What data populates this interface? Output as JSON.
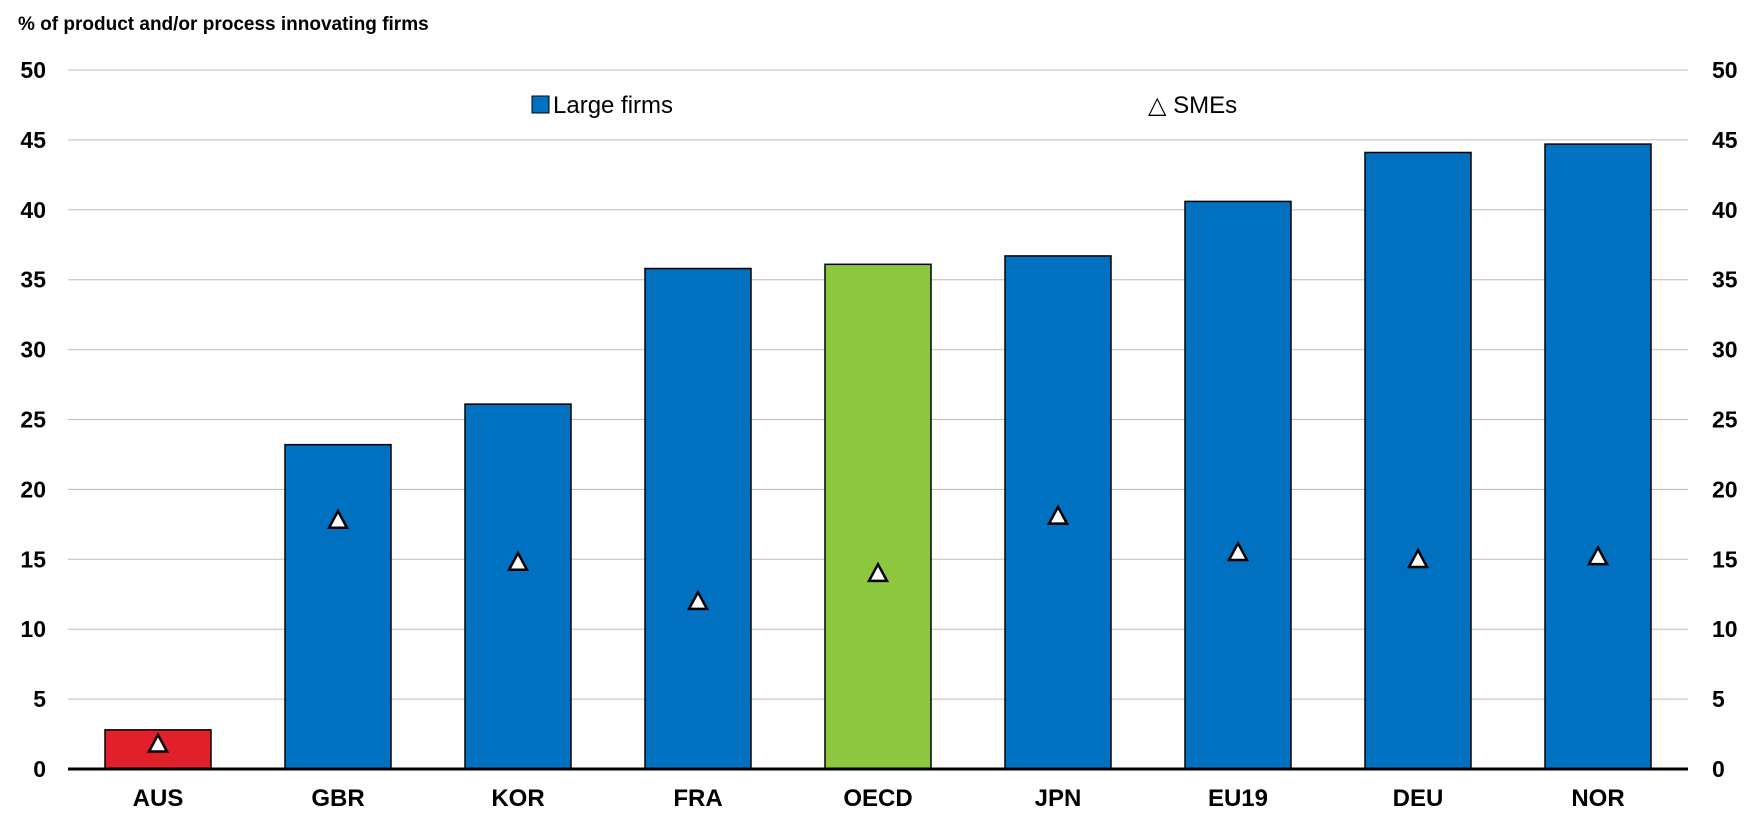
{
  "chart_data": {
    "type": "bar",
    "ylabel": "% of product and/or process innovating firms",
    "categories": [
      "AUS",
      "GBR",
      "KOR",
      "FRA",
      "OECD",
      "JPN",
      "EU19",
      "DEU",
      "NOR"
    ],
    "series": [
      {
        "name": "Large firms",
        "type": "bar",
        "values": [
          2.8,
          23.2,
          26.1,
          35.8,
          36.1,
          36.7,
          40.6,
          44.1,
          44.7
        ],
        "color": "#0070C0",
        "highlight_colors": {
          "AUS": "#E0202A",
          "OECD": "#8DC63F"
        }
      },
      {
        "name": "SMEs",
        "type": "marker",
        "marker": "triangle",
        "values": [
          1.8,
          17.8,
          14.8,
          12.0,
          14.0,
          18.1,
          15.5,
          15.0,
          15.2
        ]
      }
    ],
    "ylim": [
      0,
      50
    ],
    "yticks": [
      0,
      5,
      10,
      15,
      20,
      25,
      30,
      35,
      40,
      45,
      50
    ],
    "grid": true,
    "legend": {
      "position": "top",
      "large_label": "Large firms",
      "sme_label": "△ SMEs"
    }
  }
}
